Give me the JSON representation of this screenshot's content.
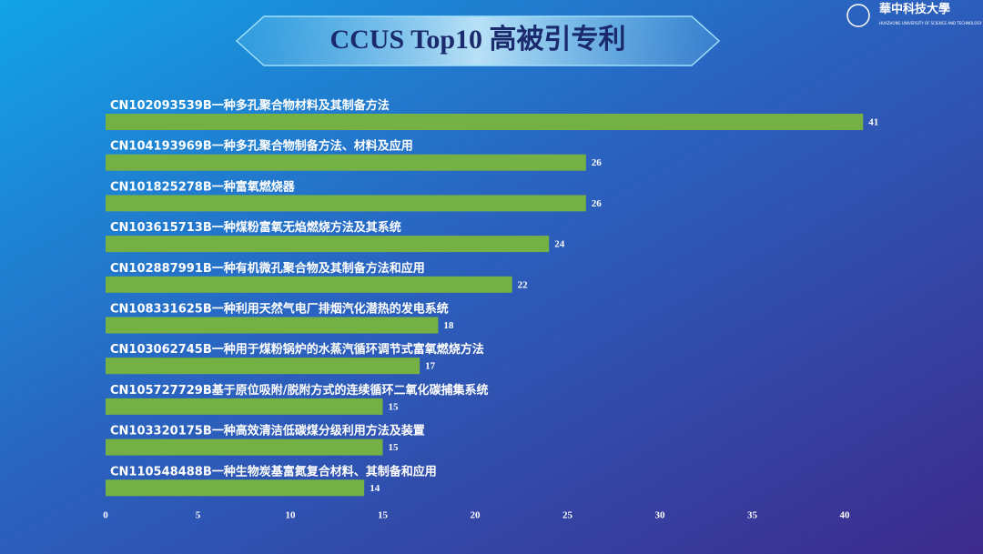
{
  "logo": {
    "name": "華中科技大學",
    "subtitle": "HUAZHONG UNIVERSITY OF SCIENCE AND TECHNOLOGY"
  },
  "chart_data": {
    "type": "hbar",
    "title": "CCUS Top10 高被引专利",
    "categories": [
      "CN102093539B一种多孔聚合物材料及其制备方法",
      "CN104193969B一种多孔聚合物制备方法、材料及应用",
      "CN101825278B一种富氧燃烧器",
      "CN103615713B一种煤粉富氧无焰燃烧方法及其系统",
      "CN102887991B一种有机微孔聚合物及其制备方法和应用",
      "CN108331625B一种利用天然气电厂排烟汽化潜热的发电系统",
      "CN103062745B一种用于煤粉锅炉的水蒸汽循环调节式富氧燃烧方法",
      "CN105727729B基于原位吸附/脱附方式的连续循环二氧化碳捕集系统",
      "CN103320175B一种高效清洁低碳煤分级利用方法及装置",
      "CN110548488B一种生物炭基富氮复合材料、其制备和应用"
    ],
    "values": [
      41,
      26,
      26,
      24,
      22,
      18,
      17,
      15,
      15,
      14
    ],
    "color": "#74b043",
    "xlim": [
      0,
      45
    ],
    "xticks": [
      0,
      5,
      10,
      15,
      20,
      25,
      30,
      35,
      40
    ]
  }
}
